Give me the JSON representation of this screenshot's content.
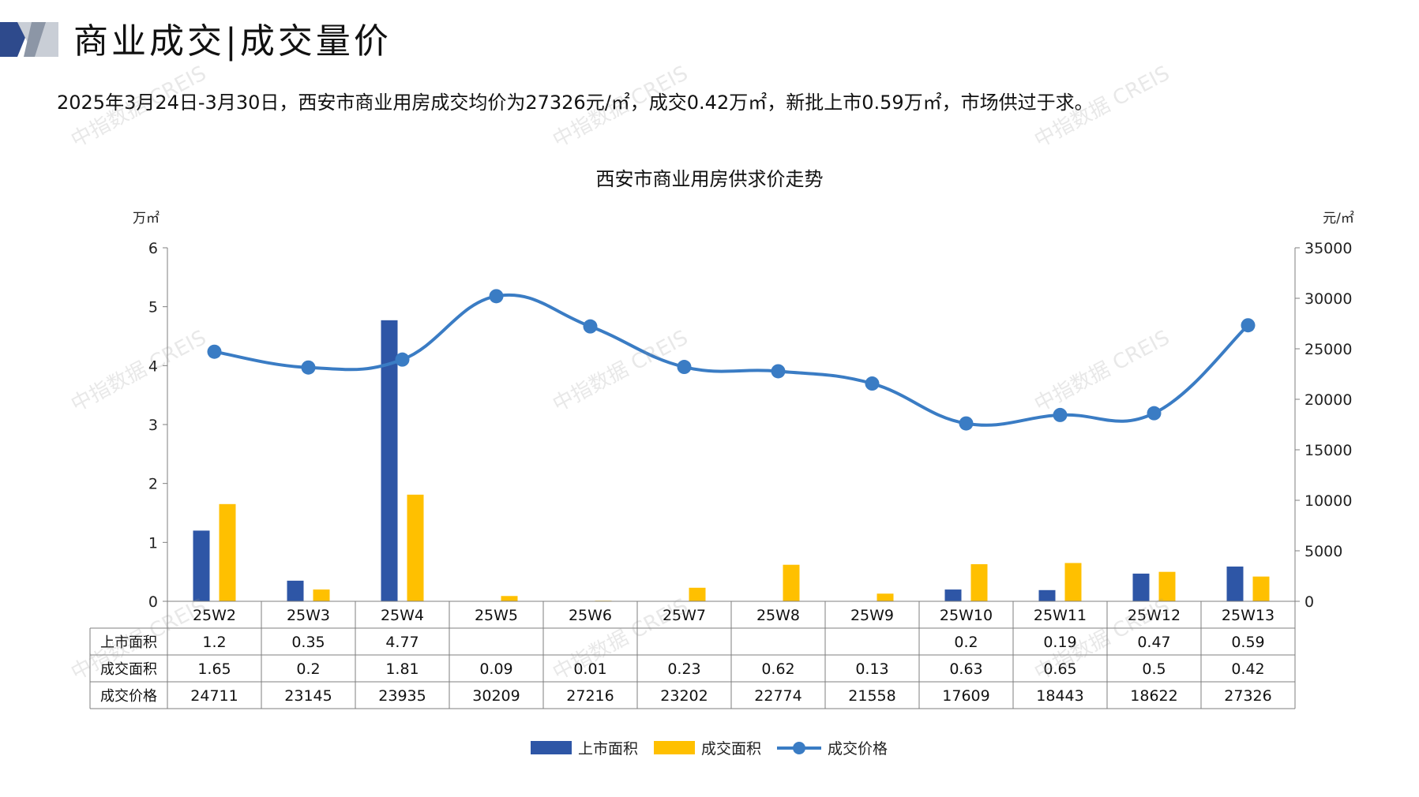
{
  "header": {
    "title": "商业成交|成交量价",
    "summary": "2025年3月24日-3月30日，西安市商业用房成交均价为27326元/㎡，成交0.42万㎡，新批上市0.59万㎡，市场供过于求。"
  },
  "watermark": "中指数据 CREIS",
  "colors": {
    "supply": "#2E56A6",
    "deal_area": "#FFC000",
    "price": "#3A7CC4",
    "deco_dark": "#2E4A8C",
    "deco_light": "#B8C0CC"
  },
  "chart_data": {
    "type": "bar",
    "title": "西安市商业用房供求价走势",
    "y_left_label": "万㎡",
    "y_right_label": "元/㎡",
    "ylim_left": [
      0,
      6
    ],
    "ylim_right": [
      0,
      35000
    ],
    "y_left_ticks": [
      0,
      1,
      2,
      3,
      4,
      5,
      6
    ],
    "y_right_ticks": [
      0,
      5000,
      10000,
      15000,
      20000,
      25000,
      30000,
      35000
    ],
    "categories": [
      "25W2",
      "25W3",
      "25W4",
      "25W5",
      "25W6",
      "25W7",
      "25W8",
      "25W9",
      "25W10",
      "25W11",
      "25W12",
      "25W13"
    ],
    "series": [
      {
        "name": "上市面积",
        "kind": "bar",
        "axis": "left",
        "values": [
          1.2,
          0.35,
          4.77,
          null,
          null,
          null,
          null,
          null,
          0.2,
          0.19,
          0.47,
          0.59
        ],
        "labels": [
          "1.2",
          "0.35",
          "4.77",
          "",
          "",
          "",
          "",
          "",
          "0.2",
          "0.19",
          "0.47",
          "0.59"
        ]
      },
      {
        "name": "成交面积",
        "kind": "bar",
        "axis": "left",
        "values": [
          1.65,
          0.2,
          1.81,
          0.09,
          0.01,
          0.23,
          0.62,
          0.13,
          0.63,
          0.65,
          0.5,
          0.42
        ],
        "labels": [
          "1.65",
          "0.2",
          "1.81",
          "0.09",
          "0.01",
          "0.23",
          "0.62",
          "0.13",
          "0.63",
          "0.65",
          "0.5",
          "0.42"
        ]
      },
      {
        "name": "成交价格",
        "kind": "line",
        "axis": "right",
        "values": [
          24711,
          23145,
          23935,
          30209,
          27216,
          23202,
          22774,
          21558,
          17609,
          18443,
          18622,
          27326
        ],
        "labels": [
          "24711",
          "23145",
          "23935",
          "30209",
          "27216",
          "23202",
          "22774",
          "21558",
          "17609",
          "18443",
          "18622",
          "27326"
        ]
      }
    ],
    "legend_position": "bottom",
    "grid": false
  }
}
